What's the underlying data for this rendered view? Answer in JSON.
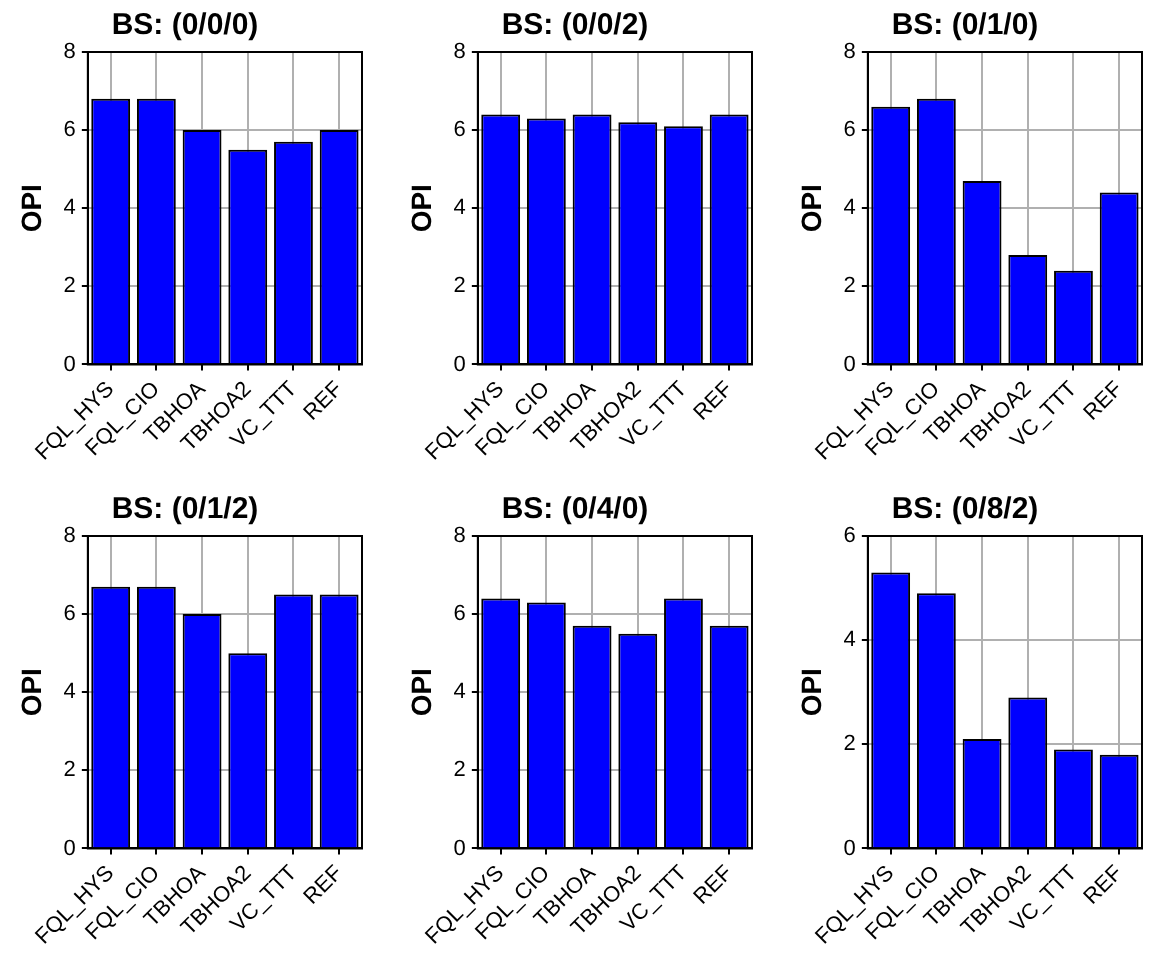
{
  "chart_data": [
    {
      "type": "bar",
      "title": "BS: (0/0/0)",
      "ylabel": "OPI",
      "categories": [
        "FQL_HYS",
        "FQL_CIO",
        "TBHOA",
        "TBHOA2",
        "VC_TTT",
        "REF"
      ],
      "values": [
        6.8,
        6.8,
        6.0,
        5.5,
        5.7,
        6.0
      ],
      "color": "#0000ff",
      "ylim": [
        0,
        8
      ],
      "yticks": [
        0,
        2,
        4,
        6,
        8
      ],
      "grid": true
    },
    {
      "type": "bar",
      "title": "BS: (0/0/2)",
      "ylabel": "OPI",
      "categories": [
        "FQL_HYS",
        "FQL_CIO",
        "TBHOA",
        "TBHOA2",
        "VC_TTT",
        "REF"
      ],
      "values": [
        6.4,
        6.3,
        6.4,
        6.2,
        6.1,
        6.4
      ],
      "color": "#0000ff",
      "ylim": [
        0,
        8
      ],
      "yticks": [
        0,
        2,
        4,
        6,
        8
      ],
      "grid": true
    },
    {
      "type": "bar",
      "title": "BS: (0/1/0)",
      "ylabel": "OPI",
      "categories": [
        "FQL_HYS",
        "FQL_CIO",
        "TBHOA",
        "TBHOA2",
        "VC_TTT",
        "REF"
      ],
      "values": [
        6.6,
        6.8,
        4.7,
        2.8,
        2.4,
        4.4
      ],
      "color": "#0000ff",
      "ylim": [
        0,
        8
      ],
      "yticks": [
        0,
        2,
        4,
        6,
        8
      ],
      "grid": true
    },
    {
      "type": "bar",
      "title": "BS: (0/1/2)",
      "ylabel": "OPI",
      "categories": [
        "FQL_HYS",
        "FQL_CIO",
        "TBHOA",
        "TBHOA2",
        "VC_TTT",
        "REF"
      ],
      "values": [
        6.7,
        6.7,
        6.0,
        5.0,
        6.5,
        6.5
      ],
      "color": "#0000ff",
      "ylim": [
        0,
        8
      ],
      "yticks": [
        0,
        2,
        4,
        6,
        8
      ],
      "grid": true
    },
    {
      "type": "bar",
      "title": "BS: (0/4/0)",
      "ylabel": "OPI",
      "categories": [
        "FQL_HYS",
        "FQL_CIO",
        "TBHOA",
        "TBHOA2",
        "VC_TTT",
        "REF"
      ],
      "values": [
        6.4,
        6.3,
        5.7,
        5.5,
        6.4,
        5.7
      ],
      "color": "#0000ff",
      "ylim": [
        0,
        8
      ],
      "yticks": [
        0,
        2,
        4,
        6,
        8
      ],
      "grid": true
    },
    {
      "type": "bar",
      "title": "BS: (0/8/2)",
      "ylabel": "OPI",
      "categories": [
        "FQL_HYS",
        "FQL_CIO",
        "TBHOA",
        "TBHOA2",
        "VC_TTT",
        "REF"
      ],
      "values": [
        5.3,
        4.9,
        2.1,
        2.9,
        1.9,
        1.8
      ],
      "color": "#0000ff",
      "ylim": [
        0,
        6
      ],
      "yticks": [
        0,
        2,
        4,
        6
      ],
      "grid": true
    }
  ]
}
